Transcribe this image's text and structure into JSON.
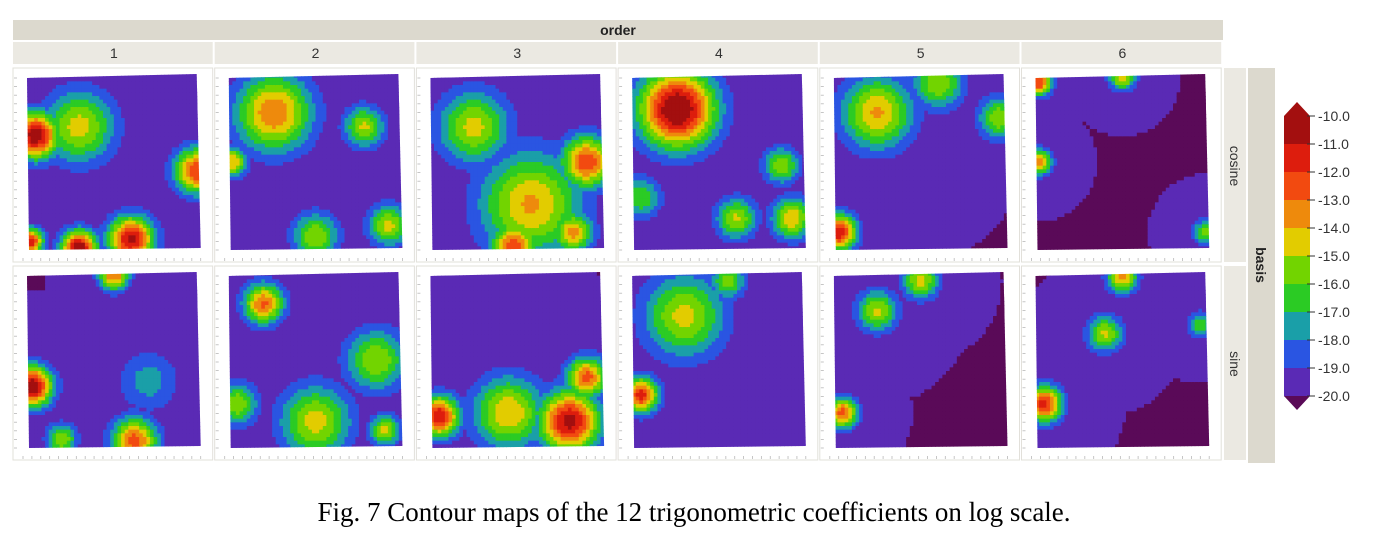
{
  "chart_data": {
    "type": "heatmap",
    "facet_column_title": "order",
    "facet_columns": [
      "1",
      "2",
      "3",
      "4",
      "5",
      "6"
    ],
    "facet_row_title": "basis",
    "facet_rows": [
      "cosine",
      "sine"
    ],
    "legend": {
      "placement": "right",
      "labels": [
        "-10.0",
        "-11.0",
        "-12.0",
        "-13.0",
        "-14.0",
        "-15.0",
        "-16.0",
        "-17.0",
        "-18.0",
        "-19.0",
        "-20.0"
      ],
      "colors": [
        "#a30f0f",
        "#dd1d0d",
        "#f24a10",
        "#ee8a0c",
        "#e2cc00",
        "#72d400",
        "#2bcb24",
        "#1a9fa8",
        "#2a55e2",
        "#5a2ab5",
        "#5a0a58"
      ]
    },
    "value_range": [
      -20.0,
      -10.0
    ],
    "panels": [
      {
        "row": "cosine",
        "col": "1",
        "hotspots": [
          {
            "x": 0.05,
            "y": 0.35,
            "v": -10.0,
            "s": 0.09
          },
          {
            "x": 0.3,
            "y": 0.99,
            "v": -10.0,
            "s": 0.07
          },
          {
            "x": 0.6,
            "y": 0.94,
            "v": -10.6,
            "s": 0.09
          },
          {
            "x": 0.98,
            "y": 0.55,
            "v": -12.0,
            "s": 0.09
          },
          {
            "x": 0.3,
            "y": 0.3,
            "v": -14.5,
            "s": 0.14
          },
          {
            "x": 0.02,
            "y": 0.95,
            "v": -11.0,
            "s": 0.05
          }
        ]
      },
      {
        "row": "cosine",
        "col": "2",
        "hotspots": [
          {
            "x": 0.26,
            "y": 0.22,
            "v": -13.0,
            "s": 0.15
          },
          {
            "x": 0.02,
            "y": 0.5,
            "v": -14.0,
            "s": 0.06
          },
          {
            "x": 0.5,
            "y": 0.92,
            "v": -15.0,
            "s": 0.09
          },
          {
            "x": 0.92,
            "y": 0.86,
            "v": -14.6,
            "s": 0.08
          },
          {
            "x": 0.78,
            "y": 0.3,
            "v": -14.8,
            "s": 0.08
          }
        ]
      },
      {
        "row": "cosine",
        "col": "3",
        "hotspots": [
          {
            "x": 0.25,
            "y": 0.3,
            "v": -14.6,
            "s": 0.14
          },
          {
            "x": 0.58,
            "y": 0.74,
            "v": -13.8,
            "s": 0.2
          },
          {
            "x": 0.9,
            "y": 0.5,
            "v": -12.0,
            "s": 0.1
          },
          {
            "x": 0.48,
            "y": 0.98,
            "v": -12.3,
            "s": 0.09
          },
          {
            "x": 0.82,
            "y": 0.9,
            "v": -13.6,
            "s": 0.08
          }
        ]
      },
      {
        "row": "cosine",
        "col": "4",
        "hotspots": [
          {
            "x": 0.26,
            "y": 0.2,
            "v": -9.4,
            "s": 0.15
          },
          {
            "x": 0.6,
            "y": 0.82,
            "v": -14.8,
            "s": 0.08
          },
          {
            "x": 0.92,
            "y": 0.82,
            "v": -14.0,
            "s": 0.08
          },
          {
            "x": 0.86,
            "y": 0.52,
            "v": -15.0,
            "s": 0.07
          },
          {
            "x": 0.05,
            "y": 0.7,
            "v": -16.0,
            "s": 0.08
          }
        ]
      },
      {
        "row": "cosine",
        "col": "5",
        "hotspots": [
          {
            "x": 0.25,
            "y": 0.22,
            "v": -13.8,
            "s": 0.14
          },
          {
            "x": 0.03,
            "y": 0.9,
            "v": -11.0,
            "s": 0.07
          },
          {
            "x": 0.6,
            "y": 0.05,
            "v": -15.0,
            "s": 0.1
          },
          {
            "x": 0.95,
            "y": 0.25,
            "v": -15.0,
            "s": 0.08
          }
        ]
      },
      {
        "row": "cosine",
        "col": "6",
        "hotspots": [
          {
            "x": 0.02,
            "y": 0.05,
            "v": -12.0,
            "s": 0.05
          },
          {
            "x": 0.02,
            "y": 0.5,
            "v": -13.0,
            "s": 0.05
          },
          {
            "x": 0.5,
            "y": 0.02,
            "v": -14.0,
            "s": 0.05
          },
          {
            "x": 0.98,
            "y": 0.9,
            "v": -15.5,
            "s": 0.05
          }
        ]
      },
      {
        "row": "sine",
        "col": "1",
        "hotspots": [
          {
            "x": 0.03,
            "y": 0.65,
            "v": -10.0,
            "s": 0.08
          },
          {
            "x": 0.5,
            "y": 0.02,
            "v": -13.0,
            "s": 0.06
          },
          {
            "x": 0.62,
            "y": 0.96,
            "v": -12.5,
            "s": 0.09
          },
          {
            "x": 0.7,
            "y": 0.62,
            "v": -17.5,
            "s": 0.12
          },
          {
            "x": 0.2,
            "y": 0.95,
            "v": -15.0,
            "s": 0.06
          }
        ]
      },
      {
        "row": "sine",
        "col": "2",
        "hotspots": [
          {
            "x": 0.2,
            "y": 0.18,
            "v": -12.8,
            "s": 0.08
          },
          {
            "x": 0.5,
            "y": 0.85,
            "v": -14.5,
            "s": 0.14
          },
          {
            "x": 0.85,
            "y": 0.5,
            "v": -15.0,
            "s": 0.12
          },
          {
            "x": 0.05,
            "y": 0.75,
            "v": -15.0,
            "s": 0.08
          },
          {
            "x": 0.9,
            "y": 0.9,
            "v": -14.5,
            "s": 0.06
          }
        ]
      },
      {
        "row": "sine",
        "col": "3",
        "hotspots": [
          {
            "x": 0.8,
            "y": 0.85,
            "v": -10.5,
            "s": 0.12
          },
          {
            "x": 0.05,
            "y": 0.82,
            "v": -11.0,
            "s": 0.08
          },
          {
            "x": 0.45,
            "y": 0.8,
            "v": -14.0,
            "s": 0.14
          },
          {
            "x": 0.9,
            "y": 0.6,
            "v": -12.5,
            "s": 0.08
          }
        ]
      },
      {
        "row": "sine",
        "col": "4",
        "hotspots": [
          {
            "x": 0.3,
            "y": 0.25,
            "v": -14.6,
            "s": 0.16
          },
          {
            "x": 0.05,
            "y": 0.7,
            "v": -11.5,
            "s": 0.07
          },
          {
            "x": 0.55,
            "y": 0.05,
            "v": -15.5,
            "s": 0.07
          }
        ]
      },
      {
        "row": "sine",
        "col": "5",
        "hotspots": [
          {
            "x": 0.25,
            "y": 0.22,
            "v": -14.8,
            "s": 0.08
          },
          {
            "x": 0.05,
            "y": 0.8,
            "v": -12.5,
            "s": 0.06
          },
          {
            "x": 0.5,
            "y": 0.05,
            "v": -14.5,
            "s": 0.07
          }
        ]
      },
      {
        "row": "sine",
        "col": "6",
        "hotspots": [
          {
            "x": 0.4,
            "y": 0.35,
            "v": -14.8,
            "s": 0.07
          },
          {
            "x": 0.05,
            "y": 0.75,
            "v": -11.5,
            "s": 0.07
          },
          {
            "x": 0.5,
            "y": 0.03,
            "v": -13.5,
            "s": 0.06
          },
          {
            "x": 0.95,
            "y": 0.3,
            "v": -16.0,
            "s": 0.05
          }
        ]
      }
    ]
  },
  "caption": "Fig. 7 Contour maps of the 12 trigonometric coefficients on log scale."
}
